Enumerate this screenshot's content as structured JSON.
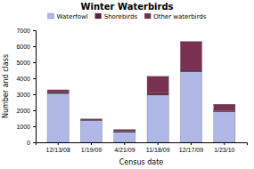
{
  "chart_data": {
    "type": "bar",
    "stacked": true,
    "title": "Winter Waterbirds",
    "xlabel": "Census date",
    "ylabel": "Number and class",
    "categories": [
      "12/13/08",
      "1/19/09",
      "4/21/09",
      "11/18/09",
      "12/17/09",
      "1/23/10"
    ],
    "series": [
      {
        "name": "Waterfowl",
        "color": "#b0b8e8",
        "values": [
          3050,
          1350,
          620,
          2950,
          4400,
          1900
        ]
      },
      {
        "name": "Shorebirds",
        "color": "#5a2040",
        "values": [
          80,
          30,
          80,
          120,
          100,
          80
        ]
      },
      {
        "name": "Other waterbirds",
        "color": "#7a3050",
        "values": [
          150,
          80,
          100,
          1050,
          1800,
          400
        ]
      }
    ],
    "ylim": [
      0,
      7000
    ],
    "yticks": [
      0,
      1000,
      2000,
      3000,
      4000,
      5000,
      6000,
      7000
    ],
    "legend": "top",
    "grid": false
  }
}
